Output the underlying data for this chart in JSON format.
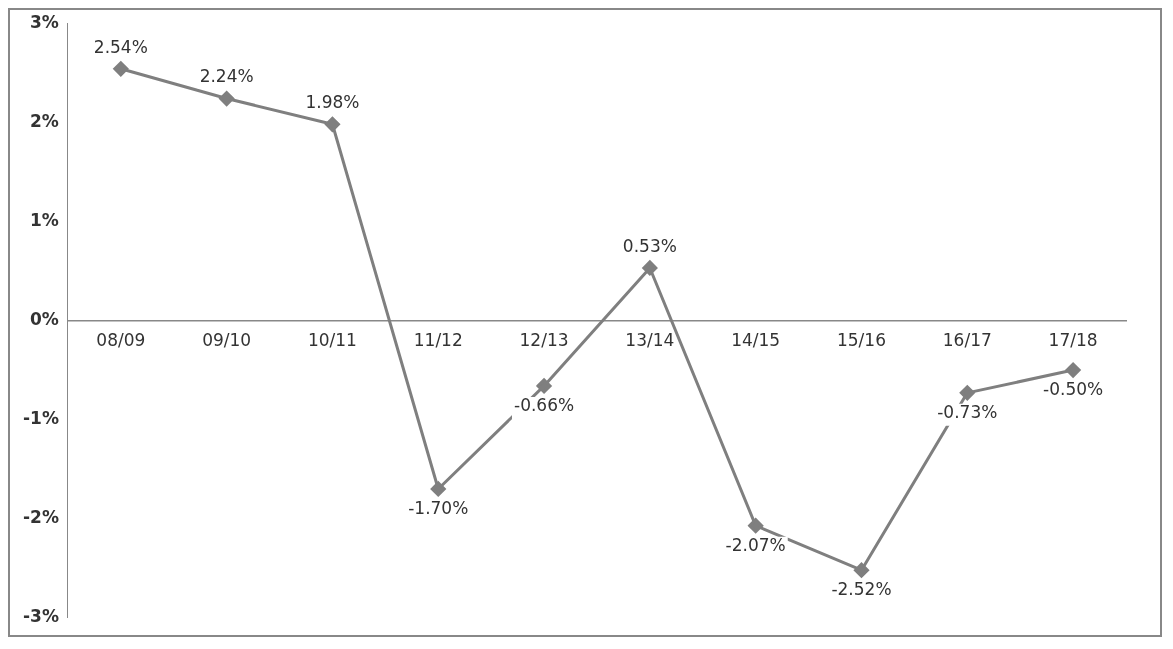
{
  "chart_data": {
    "type": "line",
    "categories": [
      "08/09",
      "09/10",
      "10/11",
      "11/12",
      "12/13",
      "13/14",
      "14/15",
      "15/16",
      "16/17",
      "17/18"
    ],
    "series": [
      {
        "color": "#7f7f7f",
        "values": [
          2.54,
          2.24,
          1.98,
          -1.7,
          -0.66,
          0.53,
          -2.07,
          -2.52,
          -0.73,
          -0.5
        ],
        "value_labels": [
          "2.54%",
          "2.24%",
          "1.98%",
          "-1.70%",
          "-0.66%",
          "0.53%",
          "-2.07%",
          "-2.52%",
          "-0.73%",
          "-0.50%"
        ]
      }
    ],
    "ylim": [
      -3,
      3
    ],
    "yticks": [
      {
        "value": -3,
        "label": "-3%"
      },
      {
        "value": -2,
        "label": "-2%"
      },
      {
        "value": -1,
        "label": "-1%"
      },
      {
        "value": 0,
        "label": "0%"
      },
      {
        "value": 1,
        "label": "1%"
      },
      {
        "value": 2,
        "label": "2%"
      },
      {
        "value": 3,
        "label": "3%"
      }
    ],
    "grid": false,
    "legend": false,
    "marker": "diamond",
    "line_style": "solid"
  }
}
